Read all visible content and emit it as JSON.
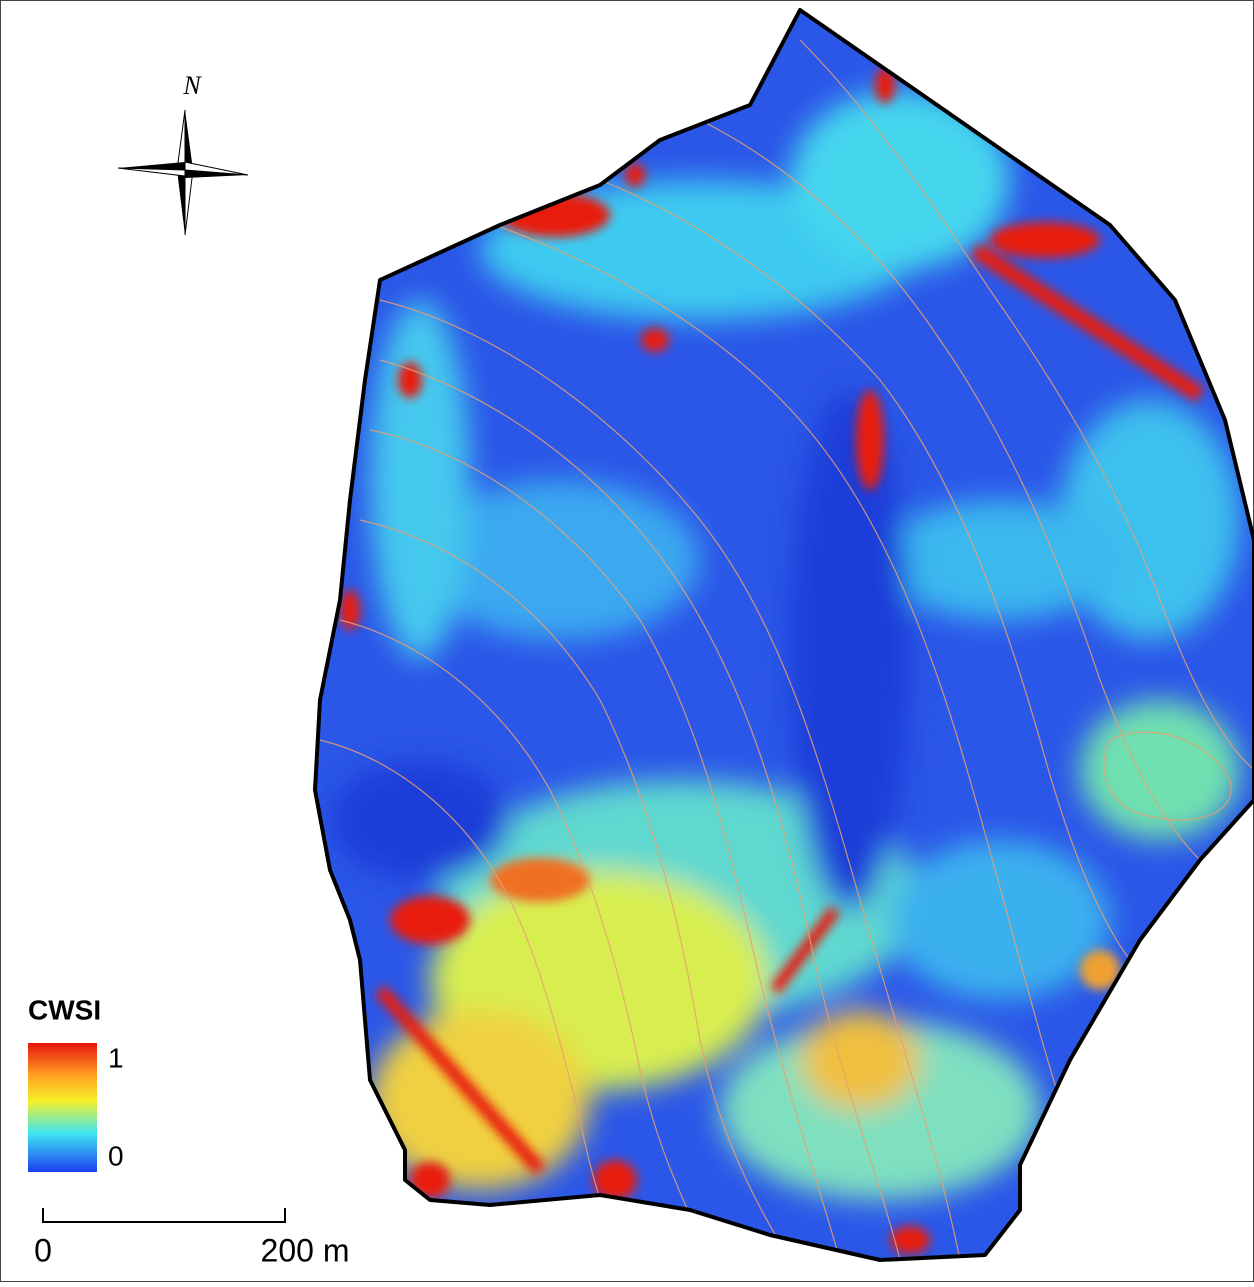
{
  "map": {
    "north_label": "N",
    "legend": {
      "title": "CWSI",
      "max": 1,
      "min": 0
    },
    "scale_bar": {
      "start": "0",
      "end": "200 m"
    }
  }
}
